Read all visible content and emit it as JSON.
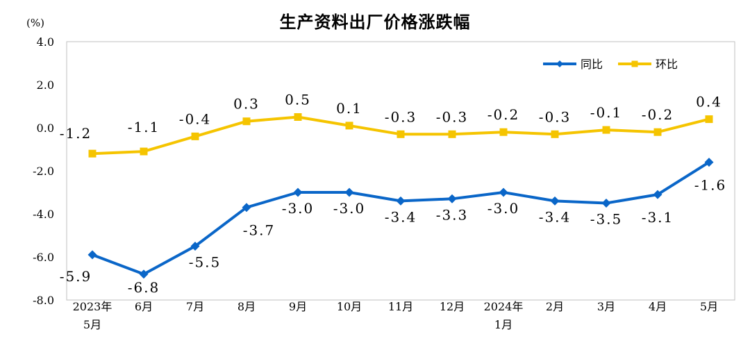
{
  "chart_data": {
    "type": "line",
    "title": "生产资料出厂价格涨跌幅",
    "unit": "(%)",
    "categories": [
      [
        "2023年",
        "5月"
      ],
      [
        "6月"
      ],
      [
        "7月"
      ],
      [
        "8月"
      ],
      [
        "9月"
      ],
      [
        "10月"
      ],
      [
        "11月"
      ],
      [
        "12月"
      ],
      [
        "2024年",
        "1月"
      ],
      [
        "2月"
      ],
      [
        "3月"
      ],
      [
        "4月"
      ],
      [
        "5月"
      ]
    ],
    "ylim": [
      -8.0,
      4.0
    ],
    "yticks": [
      4.0,
      2.0,
      0.0,
      -2.0,
      -4.0,
      -6.0,
      -8.0
    ],
    "ytick_labels": [
      "4.0",
      "2.0",
      "0.0",
      "-2.0",
      "-4.0",
      "-6.0",
      "-8.0"
    ],
    "grid": false,
    "legend_position": "top-right",
    "series": [
      {
        "name": "同比",
        "color": "#0A66C8",
        "marker": "diamond",
        "values": [
          -5.9,
          -6.8,
          -5.5,
          -3.7,
          -3.0,
          -3.0,
          -3.4,
          -3.3,
          -3.0,
          -3.4,
          -3.5,
          -3.1,
          -1.6
        ],
        "labels": [
          "-5.9",
          "-6.8",
          "-5.5",
          "-3.7",
          "-3.0",
          "-3.0",
          "-3.4",
          "-3.3",
          "-3.0",
          "-3.4",
          "-3.5",
          "-3.1",
          "-1.6"
        ]
      },
      {
        "name": "环比",
        "color": "#F5C400",
        "marker": "square",
        "values": [
          -1.2,
          -1.1,
          -0.4,
          0.3,
          0.5,
          0.1,
          -0.3,
          -0.3,
          -0.2,
          -0.3,
          -0.1,
          -0.2,
          0.4
        ],
        "labels": [
          "-1.2",
          "-1.1",
          "-0.4",
          "0.3",
          "0.5",
          "0.1",
          "-0.3",
          "-0.3",
          "-0.2",
          "-0.3",
          "-0.1",
          "-0.2",
          "0.4"
        ]
      }
    ]
  }
}
